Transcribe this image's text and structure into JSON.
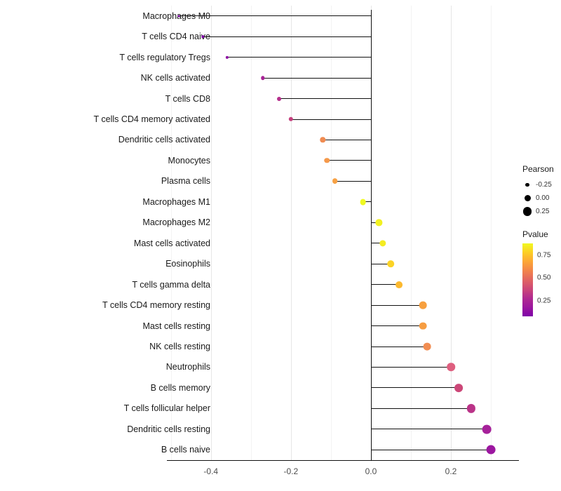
{
  "chart_data": {
    "type": "lollipop",
    "title": "",
    "xlabel": "",
    "ylabel": "",
    "x_axis": {
      "range": [
        -0.51,
        0.37
      ],
      "ticks": [
        -0.4,
        -0.2,
        0.0,
        0.2
      ],
      "tick_labels": [
        "-0.4",
        "-0.2",
        "0.0",
        "0.2"
      ],
      "minor_ticks": [
        -0.5,
        -0.3,
        -0.1,
        0.1,
        0.3
      ]
    },
    "points": [
      {
        "label": "Macrophages M0",
        "pearson": -0.48,
        "color": "#7e03a8"
      },
      {
        "label": "T cells CD4 naive",
        "pearson": -0.42,
        "color": "#8104a7"
      },
      {
        "label": "T cells regulatory  Tregs",
        "pearson": -0.36,
        "color": "#8f0da4"
      },
      {
        "label": "NK cells activated",
        "pearson": -0.27,
        "color": "#a82296"
      },
      {
        "label": "T cells CD8",
        "pearson": -0.23,
        "color": "#b52f8c"
      },
      {
        "label": "T cells CD4 memory activated",
        "pearson": -0.2,
        "color": "#c5407e"
      },
      {
        "label": "Dendritic cells activated",
        "pearson": -0.12,
        "color": "#f08b51"
      },
      {
        "label": "Monocytes",
        "pearson": -0.11,
        "color": "#f5994b"
      },
      {
        "label": "Plasma cells",
        "pearson": -0.09,
        "color": "#f7a144"
      },
      {
        "label": "Macrophages M1",
        "pearson": -0.02,
        "color": "#f0f921"
      },
      {
        "label": "Macrophages M2",
        "pearson": 0.02,
        "color": "#f2f121"
      },
      {
        "label": "Mast cells activated",
        "pearson": 0.03,
        "color": "#f4ec22"
      },
      {
        "label": "Eosinophils",
        "pearson": 0.05,
        "color": "#fbd326"
      },
      {
        "label": "T cells gamma delta",
        "pearson": 0.07,
        "color": "#fcb92f"
      },
      {
        "label": "T cells CD4 memory resting",
        "pearson": 0.13,
        "color": "#f7a03f"
      },
      {
        "label": "Mast cells resting",
        "pearson": 0.13,
        "color": "#f69d42"
      },
      {
        "label": "NK cells resting",
        "pearson": 0.14,
        "color": "#f18d52"
      },
      {
        "label": "Neutrophils",
        "pearson": 0.2,
        "color": "#de5f7f"
      },
      {
        "label": "B cells memory",
        "pearson": 0.22,
        "color": "#cc4778"
      },
      {
        "label": "T cells follicular helper",
        "pearson": 0.25,
        "color": "#ba3388"
      },
      {
        "label": "Dendritic cells resting",
        "pearson": 0.29,
        "color": "#a6219a"
      },
      {
        "label": "B cells naive",
        "pearson": 0.3,
        "color": "#9c17a0"
      }
    ],
    "legend": {
      "size": {
        "title": "Pearson",
        "items": [
          {
            "value": -0.25,
            "label": "-0.25"
          },
          {
            "value": 0.0,
            "label": "0.00"
          },
          {
            "value": 0.25,
            "label": "0.25"
          }
        ]
      },
      "color": {
        "title": "Pvalue",
        "tick_labels": [
          "0.75",
          "0.50",
          "0.25"
        ],
        "tick_positions": [
          0.16,
          0.47,
          0.79
        ],
        "gradient": [
          "#f0f921",
          "#fcce25",
          "#fca636",
          "#f2844b",
          "#e16462",
          "#cc4778",
          "#b12a90",
          "#9c179e",
          "#7e03a8"
        ]
      }
    }
  }
}
